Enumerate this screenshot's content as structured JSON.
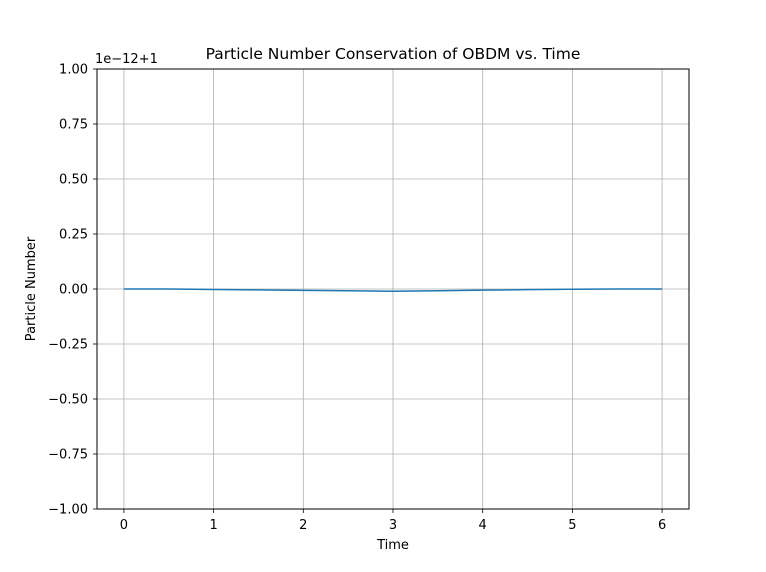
{
  "chart_data": {
    "type": "line",
    "title": "Particle Number Conservation of OBDM vs. Time",
    "xlabel": "Time",
    "ylabel": "Particle Number",
    "axis_offset_label": "1e−12+1",
    "xlim": [
      -0.3,
      6.3
    ],
    "ylim": [
      -1.0,
      1.0
    ],
    "x_ticks": [
      0,
      1,
      2,
      3,
      4,
      5,
      6
    ],
    "y_ticks": [
      -1.0,
      -0.75,
      -0.5,
      -0.25,
      0.0,
      0.25,
      0.5,
      0.75,
      1.0
    ],
    "x_tick_labels": [
      "0",
      "1",
      "2",
      "3",
      "4",
      "5",
      "6"
    ],
    "y_tick_labels": [
      "−1.00",
      "−0.75",
      "−0.50",
      "−0.25",
      "0.00",
      "0.25",
      "0.50",
      "0.75",
      "1.00"
    ],
    "grid": true,
    "series": [
      {
        "color": "#1f77b4",
        "x": [
          0,
          0.5,
          1,
          1.5,
          2,
          2.5,
          3,
          3.5,
          4,
          4.5,
          5,
          5.5,
          6
        ],
        "y": [
          0.0,
          0.0,
          -0.002,
          -0.004,
          -0.006,
          -0.008,
          -0.01,
          -0.008,
          -0.005,
          -0.003,
          -0.001,
          0.0,
          0.0
        ]
      }
    ]
  }
}
